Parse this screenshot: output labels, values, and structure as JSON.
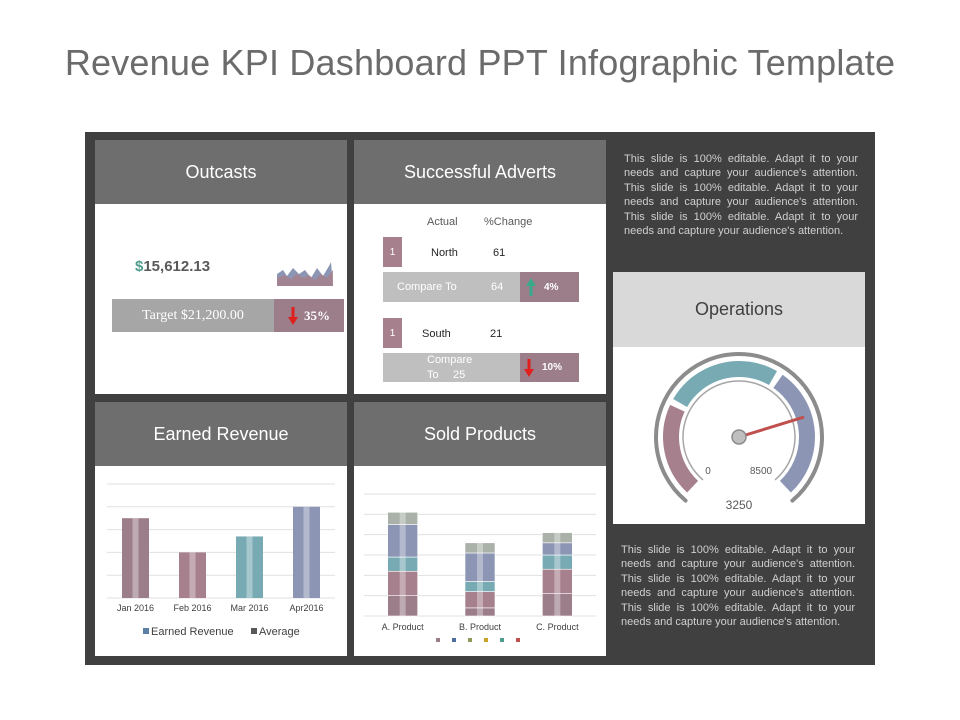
{
  "title": "Revenue KPI Dashboard PPT Infographic Template",
  "outcasts": {
    "header": "Outcasts",
    "currency": "$",
    "amount": "15,612.13",
    "target": "Target $21,200.00",
    "percent": "35%",
    "trend": "down"
  },
  "adverts": {
    "header": "Successful Adverts",
    "col_actual": "Actual",
    "col_change": "%Change",
    "north": {
      "rank": "1",
      "region": "North",
      "actual": "61",
      "compare_label": "Compare To",
      "compare_value": "64",
      "change": "4%",
      "trend": "up"
    },
    "south": {
      "rank": "1",
      "region": "South",
      "actual": "21",
      "compare_label": "Compare",
      "compare_label2": "To",
      "compare_value": "25",
      "change": "10%",
      "trend": "down"
    }
  },
  "side_text_top": "This slide is 100% editable. Adapt it to your needs and capture your audience's attention. This slide is 100% editable. Adapt it to your needs and capture your audience's attention. This slide is 100% editable. Adapt it to your needs and capture your audience's attention.",
  "side_text_bottom": "This slide is 100% editable. Adapt it to your needs and capture your audience's attention. This slide is 100% editable. Adapt it to your needs and capture your audience's attention. This slide is 100% editable. Adapt it to your needs and capture your audience's attention.",
  "operations": {
    "header": "Operations",
    "min_label": "0",
    "max_label": "8500",
    "value_label": "3250",
    "colors": {
      "low": "#a6808c",
      "mid": "#78aab4",
      "high": "#8c96b4",
      "needle": "#c0504d"
    }
  },
  "earned_revenue": {
    "header": "Earned Revenue",
    "legend": [
      "Earned Revenue",
      "Average"
    ],
    "legend_colors": [
      "#5b7fa6",
      "#595959"
    ],
    "chart_data": {
      "type": "bar",
      "categories": [
        "Jan 2016",
        "Feb 2016",
        "Mar 2016",
        "Apr2016"
      ],
      "values": [
        3.5,
        2.0,
        2.7,
        4.0
      ],
      "ylim": [
        0,
        5
      ],
      "colors": [
        "#9c7d8a",
        "#a6808c",
        "#78aab4",
        "#8c96b4"
      ]
    }
  },
  "sold_products": {
    "header": "Sold Products",
    "legend_colors": [
      "#9c7d8a",
      "#4f6ea0",
      "#8c9b5a",
      "#c9a227",
      "#4f9b8c",
      "#c0504d"
    ],
    "chart_data": {
      "type": "bar",
      "categories": [
        "A. Product",
        "B. Product",
        "C. Product"
      ],
      "series": [
        {
          "values": [
            1.0,
            0.4,
            1.1
          ]
        },
        {
          "values": [
            1.2,
            0.8,
            1.2
          ]
        },
        {
          "values": [
            0.7,
            0.5,
            0.7
          ]
        },
        {
          "values": [
            1.6,
            1.4,
            0.6
          ]
        },
        {
          "values": [
            0.6,
            0.5,
            0.5
          ]
        }
      ],
      "series_colors": [
        "#9c7d8a",
        "#a6808c",
        "#78aab4",
        "#8c96b4",
        "#a9b1a9"
      ],
      "ylim": [
        0,
        6
      ]
    }
  }
}
